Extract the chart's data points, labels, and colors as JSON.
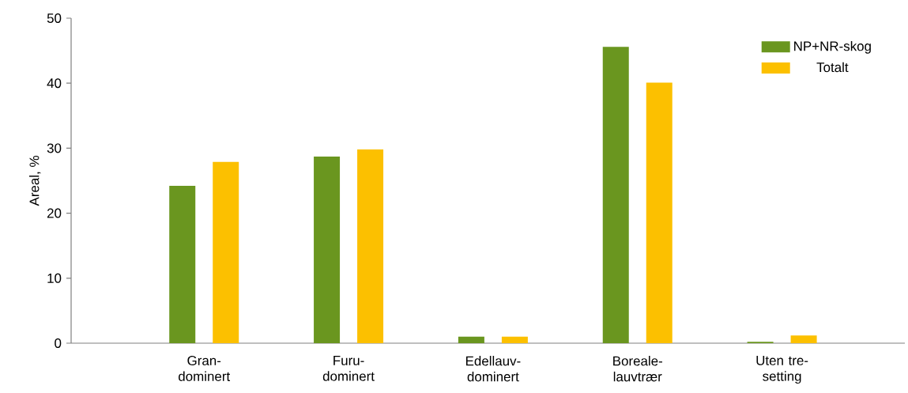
{
  "chart_data": {
    "type": "bar",
    "ylabel": "Areal, %",
    "categories": [
      "Gran- dominert",
      "Furu- dominert",
      "Edellauv- dominert",
      "Boreale- lauvtrær",
      "Uten tre- setting"
    ],
    "series": [
      {
        "name": "NP+NR-skog",
        "color": "#6a961f",
        "values": [
          24.2,
          28.7,
          1.0,
          45.6,
          0.2
        ]
      },
      {
        "name": "Totalt",
        "color": "#fcc000",
        "values": [
          27.9,
          29.8,
          1.0,
          40.1,
          1.2
        ]
      }
    ],
    "ylim": [
      0,
      50
    ],
    "yticks": [
      0,
      10,
      20,
      30,
      40,
      50
    ],
    "grid": false,
    "legend": "top right"
  }
}
